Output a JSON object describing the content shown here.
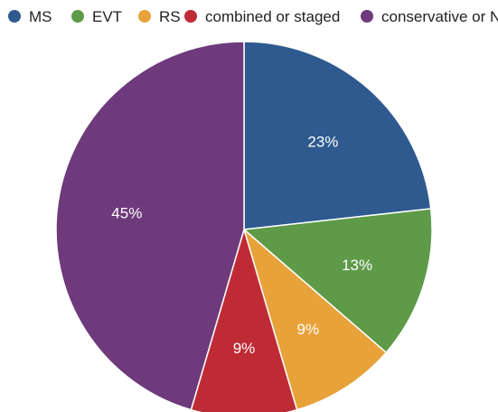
{
  "chart_data": {
    "type": "pie",
    "slices": [
      {
        "label": "MS",
        "value": 23,
        "value_label": "23%",
        "color": "#2e5a8f"
      },
      {
        "label": "EVT",
        "value": 13,
        "value_label": "13%",
        "color": "#5e9a48"
      },
      {
        "label": "RS",
        "value": 9,
        "value_label": "9%",
        "color": "#e8a23a"
      },
      {
        "label": "combined or staged",
        "value": 9,
        "value_label": "9%",
        "color": "#bf2b35"
      },
      {
        "label": "conservative or N/A",
        "value": 45,
        "value_label": "45%",
        "color": "#6e3a7c"
      }
    ],
    "legend_position": "top",
    "start_angle_deg": 0,
    "direction": "clockwise"
  }
}
